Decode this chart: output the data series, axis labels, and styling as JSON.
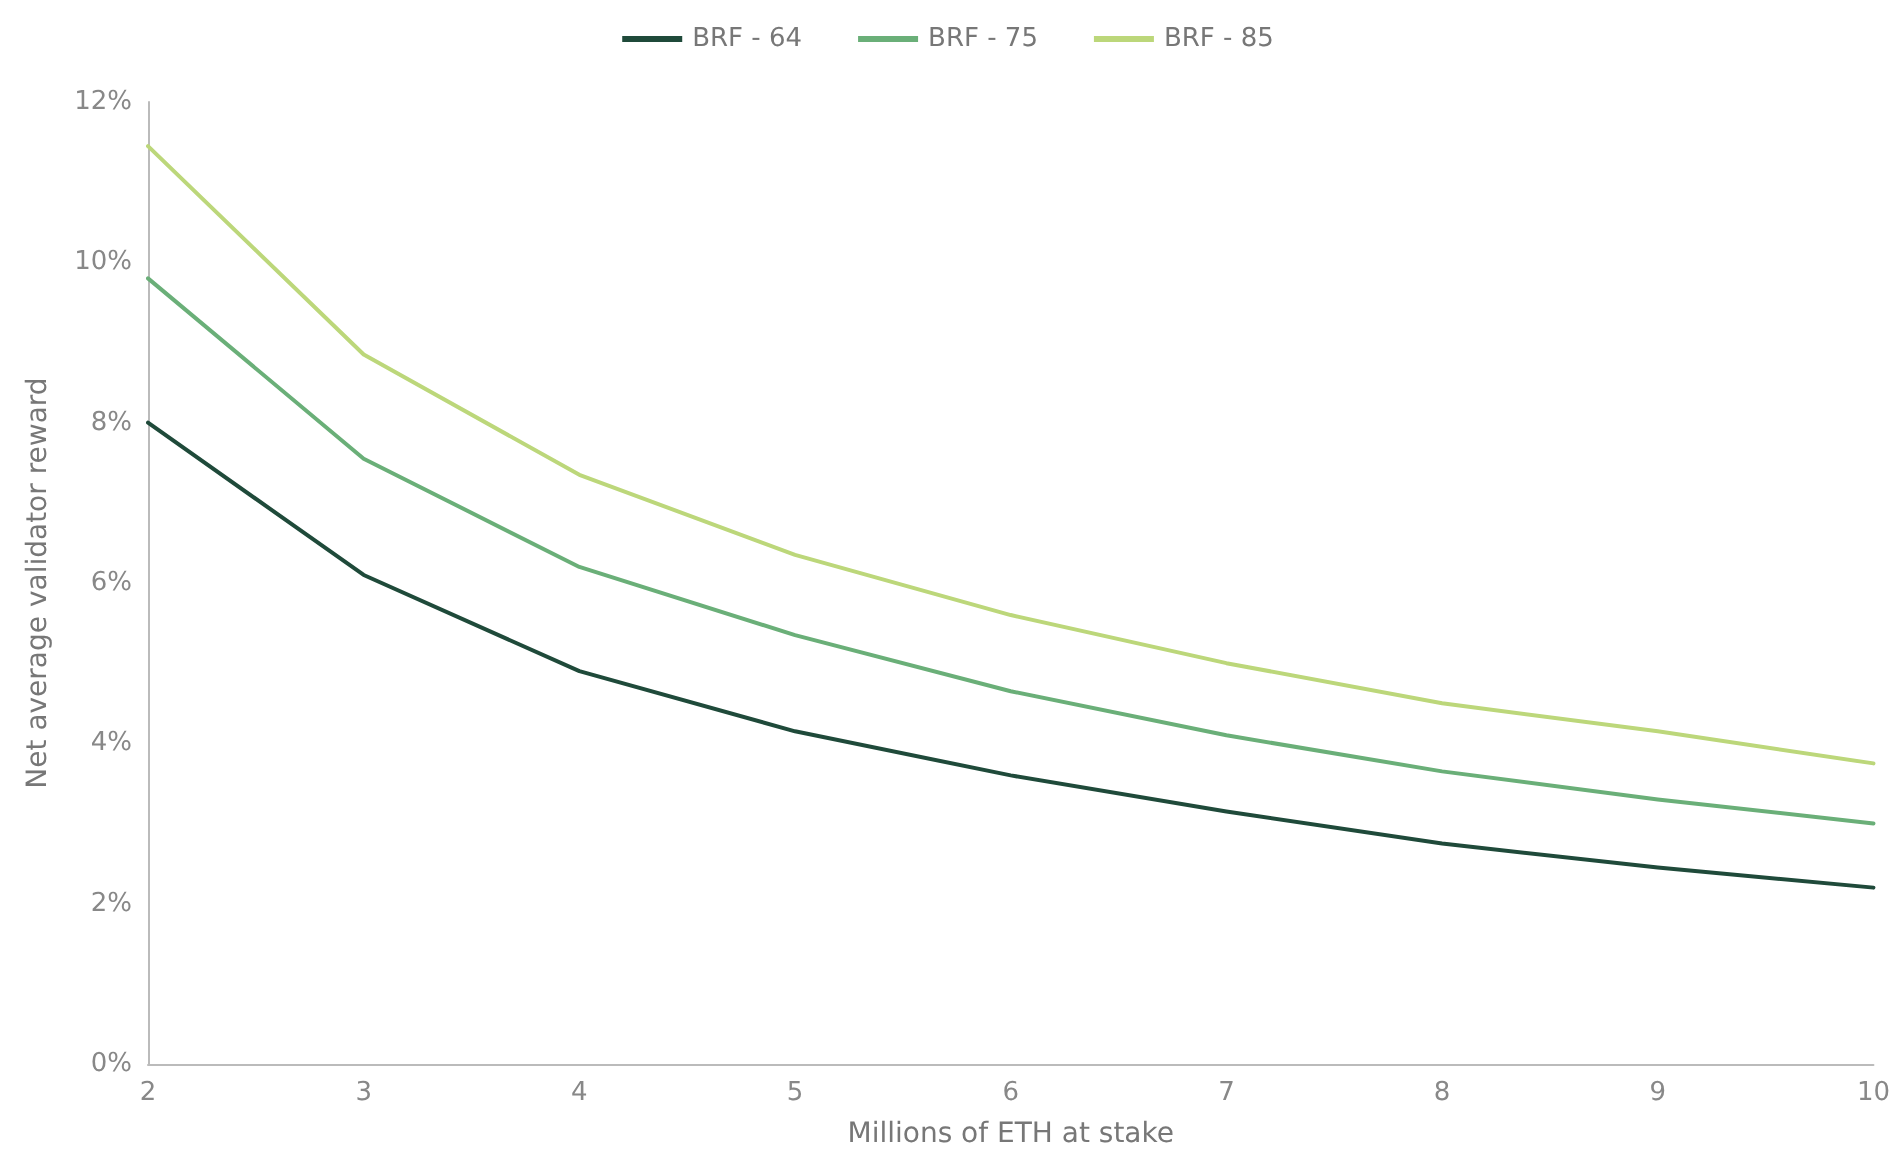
{
  "chart_data": {
    "type": "line",
    "xlabel": "Millions of ETH at stake",
    "ylabel": "Net average validator reward",
    "x": [
      2,
      3,
      4,
      5,
      6,
      7,
      8,
      9,
      10
    ],
    "series": [
      {
        "name": "BRF - 64",
        "color": "#1f4a3a",
        "values": [
          8.0,
          6.1,
          4.9,
          4.15,
          3.6,
          3.15,
          2.75,
          2.45,
          2.2
        ]
      },
      {
        "name": "BRF - 75",
        "color": "#6aaf78",
        "values": [
          9.8,
          7.55,
          6.2,
          5.35,
          4.65,
          4.1,
          3.65,
          3.3,
          3.0
        ]
      },
      {
        "name": "BRF - 85",
        "color": "#bcd77a",
        "values": [
          11.45,
          8.85,
          7.35,
          6.35,
          5.6,
          5.0,
          4.5,
          4.15,
          3.75
        ]
      }
    ],
    "xlim": [
      2,
      10
    ],
    "xticks": [
      2,
      3,
      4,
      5,
      6,
      7,
      8,
      9,
      10
    ],
    "ylim": [
      0,
      12
    ],
    "yticks": [
      {
        "value": 0,
        "label": "0%"
      },
      {
        "value": 2,
        "label": "2%"
      },
      {
        "value": 4,
        "label": "4%"
      },
      {
        "value": 6,
        "label": "6%"
      },
      {
        "value": 8,
        "label": "8%"
      },
      {
        "value": 10,
        "label": "10%"
      },
      {
        "value": 12,
        "label": "12%"
      }
    ],
    "grid": false,
    "legend": "top",
    "marker": "none",
    "line_style": "solid"
  }
}
